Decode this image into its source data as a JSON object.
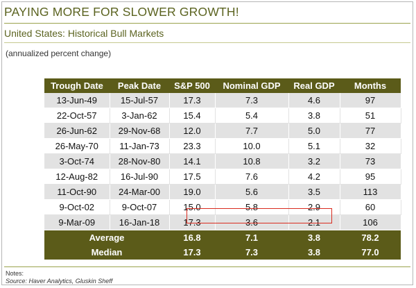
{
  "header": {
    "title": "PAYING MORE FOR SLOWER GROWTH!",
    "subtitle": "United States: Historical Bull Markets",
    "note": "(annualized percent change)"
  },
  "table": {
    "columns": [
      "Trough Date",
      "Peak Date",
      "S&P 500",
      "Nominal GDP",
      "Real GDP",
      "Months"
    ],
    "rows": [
      [
        "13-Jun-49",
        "15-Jul-57",
        "17.3",
        "7.3",
        "4.6",
        "97"
      ],
      [
        "22-Oct-57",
        "3-Jan-62",
        "15.4",
        "5.4",
        "3.8",
        "51"
      ],
      [
        "26-Jun-62",
        "29-Nov-68",
        "12.0",
        "7.7",
        "5.0",
        "77"
      ],
      [
        "26-May-70",
        "11-Jan-73",
        "23.3",
        "10.0",
        "5.1",
        "32"
      ],
      [
        "3-Oct-74",
        "28-Nov-80",
        "14.1",
        "10.8",
        "3.2",
        "73"
      ],
      [
        "12-Aug-82",
        "16-Jul-90",
        "17.5",
        "7.6",
        "4.2",
        "95"
      ],
      [
        "11-Oct-90",
        "24-Mar-00",
        "19.0",
        "5.6",
        "3.5",
        "113"
      ],
      [
        "9-Oct-02",
        "9-Oct-07",
        "15.0",
        "5.8",
        "2.9",
        "60"
      ],
      [
        "9-Mar-09",
        "16-Jan-18",
        "17.3",
        "3.6",
        "2.1",
        "106"
      ]
    ],
    "summary": [
      {
        "label": "Average",
        "values": [
          "16.8",
          "7.1",
          "3.8",
          "78.2"
        ]
      },
      {
        "label": "Median",
        "values": [
          "17.3",
          "7.3",
          "3.8",
          "77.0"
        ]
      }
    ]
  },
  "footer": {
    "notes": "Notes:",
    "source": "Source: Haver Analytics, Gluskin Sheff"
  },
  "colors": {
    "header_bg": "#5b5b19",
    "title_text": "#5b6320",
    "row_shade": "#e2e2e2",
    "highlight_border": "#d92b1f"
  }
}
